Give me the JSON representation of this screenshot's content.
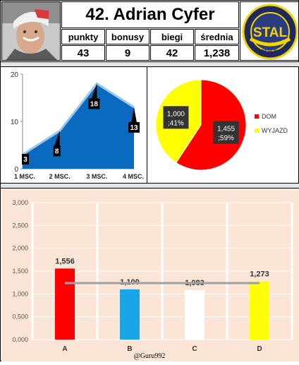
{
  "header": {
    "title": "42. Adrian Cyfer",
    "stats": [
      {
        "label": "punkty",
        "value": "43"
      },
      {
        "label": "bonusy",
        "value": "9"
      },
      {
        "label": "biegi",
        "value": "42"
      },
      {
        "label": "średnia",
        "value": "1,238"
      }
    ],
    "logo_text": {
      "main": "STAL",
      "ring": "GORZÓW WLKP."
    }
  },
  "credit": "@Guru992",
  "colors": {
    "area_fill": "#0a6ac0",
    "area_line": "#9cc6ec",
    "home": "#ff0000",
    "away": "#ffff00"
  },
  "chart_data": [
    {
      "type": "area",
      "categories": [
        "1 MSC.",
        "2 MSC.",
        "3 MSC.",
        "4 MSC."
      ],
      "values": [
        3,
        8,
        18,
        13
      ],
      "ylim": [
        0,
        20
      ],
      "yticks": [
        "0",
        "10",
        "20"
      ],
      "grid": false
    },
    {
      "type": "pie",
      "labels": [
        "DOM",
        "WYJAZD"
      ],
      "values": [
        1.455,
        1.0
      ],
      "percent": [
        59,
        41
      ],
      "data_labels": [
        [
          "1,455",
          ";59%"
        ],
        [
          "1,000",
          ";41%"
        ]
      ],
      "legend": "right"
    },
    {
      "type": "bar",
      "categories": [
        "A",
        "B",
        "C",
        "D"
      ],
      "values": [
        1.556,
        1.1,
        1.083,
        1.273
      ],
      "value_labels": [
        "1,556",
        "1,100",
        "1,083",
        "1,273"
      ],
      "bar_colors": [
        "#ff0000",
        "#1aa5e6",
        "#ffffff",
        "#ffff00"
      ],
      "average_line": 1.238,
      "ylim": [
        0,
        3
      ],
      "yticks": [
        "0,000",
        "0,500",
        "1,000",
        "1,500",
        "2,000",
        "2,500",
        "3,000"
      ],
      "grid": true,
      "background": "#fbe5d6"
    }
  ]
}
